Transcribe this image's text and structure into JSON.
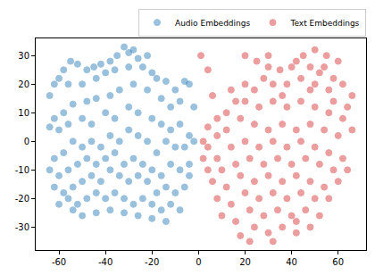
{
  "chart_data": {
    "type": "scatter",
    "marker": "circle",
    "legend": "upper right",
    "grid": false,
    "xlim": [
      -70,
      72
    ],
    "ylim": [
      -38,
      36
    ],
    "xticks": [
      -60,
      -40,
      -20,
      0,
      20,
      40,
      60
    ],
    "yticks": [
      -30,
      -20,
      -10,
      0,
      10,
      20,
      30
    ],
    "series": [
      {
        "name": "Audio Embeddings",
        "color": "#1f77b4",
        "values": [
          [
            -32,
            33
          ],
          [
            -30,
            31
          ],
          [
            -28,
            32
          ],
          [
            -35,
            30
          ],
          [
            -38,
            28
          ],
          [
            -26,
            29
          ],
          [
            -42,
            27
          ],
          [
            -45,
            26
          ],
          [
            -48,
            25
          ],
          [
            -52,
            27
          ],
          [
            -55,
            28
          ],
          [
            -58,
            25
          ],
          [
            -60,
            22
          ],
          [
            -62,
            20
          ],
          [
            -64,
            16
          ],
          [
            -56,
            20
          ],
          [
            -50,
            20
          ],
          [
            -44,
            22
          ],
          [
            -40,
            24
          ],
          [
            -36,
            25
          ],
          [
            -30,
            26
          ],
          [
            -24,
            26
          ],
          [
            -22,
            30
          ],
          [
            -20,
            24
          ],
          [
            -18,
            22
          ],
          [
            -14,
            21
          ],
          [
            -10,
            18
          ],
          [
            -6,
            21
          ],
          [
            -4,
            20
          ],
          [
            -8,
            14
          ],
          [
            -12,
            12
          ],
          [
            -16,
            15
          ],
          [
            -22,
            18
          ],
          [
            -28,
            20
          ],
          [
            -34,
            18
          ],
          [
            -38,
            16
          ],
          [
            -44,
            15
          ],
          [
            -48,
            14
          ],
          [
            -54,
            13
          ],
          [
            -58,
            10
          ],
          [
            -62,
            8
          ],
          [
            -64,
            5
          ],
          [
            -60,
            4
          ],
          [
            -56,
            6
          ],
          [
            -50,
            8
          ],
          [
            -46,
            6
          ],
          [
            -40,
            10
          ],
          [
            -36,
            8
          ],
          [
            -30,
            12
          ],
          [
            -26,
            10
          ],
          [
            -20,
            8
          ],
          [
            -16,
            6
          ],
          [
            -12,
            4
          ],
          [
            -8,
            6
          ],
          [
            -4,
            2
          ],
          [
            -6,
            -2
          ],
          [
            -10,
            -2
          ],
          [
            -14,
            0
          ],
          [
            -18,
            -4
          ],
          [
            -22,
            0
          ],
          [
            -26,
            2
          ],
          [
            -30,
            4
          ],
          [
            -34,
            0
          ],
          [
            -38,
            2
          ],
          [
            -42,
            -2
          ],
          [
            -46,
            0
          ],
          [
            -50,
            -2
          ],
          [
            -54,
            0
          ],
          [
            -58,
            -4
          ],
          [
            -62,
            -6
          ],
          [
            -64,
            -10
          ],
          [
            -60,
            -12
          ],
          [
            -56,
            -10
          ],
          [
            -52,
            -8
          ],
          [
            -48,
            -6
          ],
          [
            -44,
            -8
          ],
          [
            -40,
            -6
          ],
          [
            -36,
            -4
          ],
          [
            -32,
            -8
          ],
          [
            -28,
            -6
          ],
          [
            -24,
            -8
          ],
          [
            -20,
            -10
          ],
          [
            -16,
            -12
          ],
          [
            -12,
            -8
          ],
          [
            -8,
            -10
          ],
          [
            -4,
            -12
          ],
          [
            -6,
            -16
          ],
          [
            -10,
            -18
          ],
          [
            -14,
            -16
          ],
          [
            -18,
            -18
          ],
          [
            -22,
            -14
          ],
          [
            -26,
            -12
          ],
          [
            -30,
            -14
          ],
          [
            -34,
            -12
          ],
          [
            -38,
            -10
          ],
          [
            -42,
            -14
          ],
          [
            -46,
            -12
          ],
          [
            -50,
            -14
          ],
          [
            -54,
            -16
          ],
          [
            -58,
            -18
          ],
          [
            -62,
            -16
          ],
          [
            -60,
            -22
          ],
          [
            -56,
            -20
          ],
          [
            -52,
            -22
          ],
          [
            -48,
            -20
          ],
          [
            -44,
            -18
          ],
          [
            -40,
            -20
          ],
          [
            -36,
            -18
          ],
          [
            -32,
            -20
          ],
          [
            -28,
            -22
          ],
          [
            -24,
            -20
          ],
          [
            -20,
            -22
          ],
          [
            -16,
            -24
          ],
          [
            -12,
            -22
          ],
          [
            -8,
            -24
          ],
          [
            -14,
            -28
          ],
          [
            -20,
            -27
          ],
          [
            -26,
            -26
          ],
          [
            -32,
            -25
          ],
          [
            -38,
            -24
          ],
          [
            -44,
            -25
          ],
          [
            -50,
            -26
          ],
          [
            -54,
            -24
          ],
          [
            -4,
            -8
          ],
          [
            -2,
            0
          ],
          [
            -2,
            12
          ]
        ]
      },
      {
        "name": "Text Embeddings",
        "color": "#d62728",
        "values": [
          [
            1,
            30
          ],
          [
            4,
            25
          ],
          [
            20,
            30
          ],
          [
            25,
            28
          ],
          [
            30,
            26
          ],
          [
            35,
            25
          ],
          [
            40,
            26
          ],
          [
            45,
            30
          ],
          [
            50,
            32
          ],
          [
            55,
            30
          ],
          [
            60,
            28
          ],
          [
            48,
            26
          ],
          [
            52,
            24
          ],
          [
            58,
            22
          ],
          [
            62,
            20
          ],
          [
            66,
            16
          ],
          [
            64,
            12
          ],
          [
            56,
            18
          ],
          [
            50,
            20
          ],
          [
            44,
            22
          ],
          [
            38,
            20
          ],
          [
            32,
            20
          ],
          [
            28,
            22
          ],
          [
            24,
            18
          ],
          [
            20,
            20
          ],
          [
            16,
            14
          ],
          [
            20,
            14
          ],
          [
            26,
            12
          ],
          [
            32,
            14
          ],
          [
            38,
            12
          ],
          [
            44,
            14
          ],
          [
            50,
            12
          ],
          [
            56,
            10
          ],
          [
            62,
            8
          ],
          [
            66,
            4
          ],
          [
            60,
            2
          ],
          [
            54,
            4
          ],
          [
            48,
            6
          ],
          [
            42,
            4
          ],
          [
            36,
            6
          ],
          [
            30,
            4
          ],
          [
            24,
            6
          ],
          [
            18,
            8
          ],
          [
            12,
            4
          ],
          [
            8,
            2
          ],
          [
            4,
            -2
          ],
          [
            8,
            -6
          ],
          [
            14,
            -2
          ],
          [
            20,
            0
          ],
          [
            26,
            -2
          ],
          [
            32,
            0
          ],
          [
            38,
            -2
          ],
          [
            44,
            0
          ],
          [
            50,
            -2
          ],
          [
            56,
            -4
          ],
          [
            62,
            -6
          ],
          [
            64,
            -10
          ],
          [
            58,
            -10
          ],
          [
            52,
            -8
          ],
          [
            46,
            -6
          ],
          [
            40,
            -8
          ],
          [
            34,
            -6
          ],
          [
            28,
            -8
          ],
          [
            22,
            -6
          ],
          [
            16,
            -8
          ],
          [
            10,
            -10
          ],
          [
            4,
            -10
          ],
          [
            6,
            -14
          ],
          [
            12,
            -16
          ],
          [
            18,
            -12
          ],
          [
            24,
            -14
          ],
          [
            30,
            -12
          ],
          [
            36,
            -14
          ],
          [
            42,
            -12
          ],
          [
            48,
            -14
          ],
          [
            54,
            -16
          ],
          [
            60,
            -14
          ],
          [
            56,
            -20
          ],
          [
            50,
            -20
          ],
          [
            44,
            -18
          ],
          [
            38,
            -20
          ],
          [
            32,
            -18
          ],
          [
            26,
            -20
          ],
          [
            20,
            -18
          ],
          [
            14,
            -22
          ],
          [
            8,
            -20
          ],
          [
            10,
            -26
          ],
          [
            16,
            -28
          ],
          [
            22,
            -24
          ],
          [
            28,
            -26
          ],
          [
            34,
            -24
          ],
          [
            40,
            -26
          ],
          [
            46,
            -24
          ],
          [
            52,
            -26
          ],
          [
            48,
            -30
          ],
          [
            42,
            -32
          ],
          [
            36,
            -30
          ],
          [
            30,
            -32
          ],
          [
            24,
            -30
          ],
          [
            18,
            -33
          ],
          [
            22,
            -35
          ],
          [
            32,
            -35
          ],
          [
            42,
            -28
          ],
          [
            12,
            10
          ],
          [
            8,
            8
          ],
          [
            4,
            5
          ],
          [
            30,
            30
          ],
          [
            42,
            28
          ],
          [
            36,
            16
          ],
          [
            48,
            18
          ],
          [
            54,
            26
          ],
          [
            58,
            14
          ],
          [
            14,
            18
          ],
          [
            6,
            16
          ],
          [
            2,
            0
          ],
          [
            2,
            -6
          ]
        ]
      }
    ]
  }
}
